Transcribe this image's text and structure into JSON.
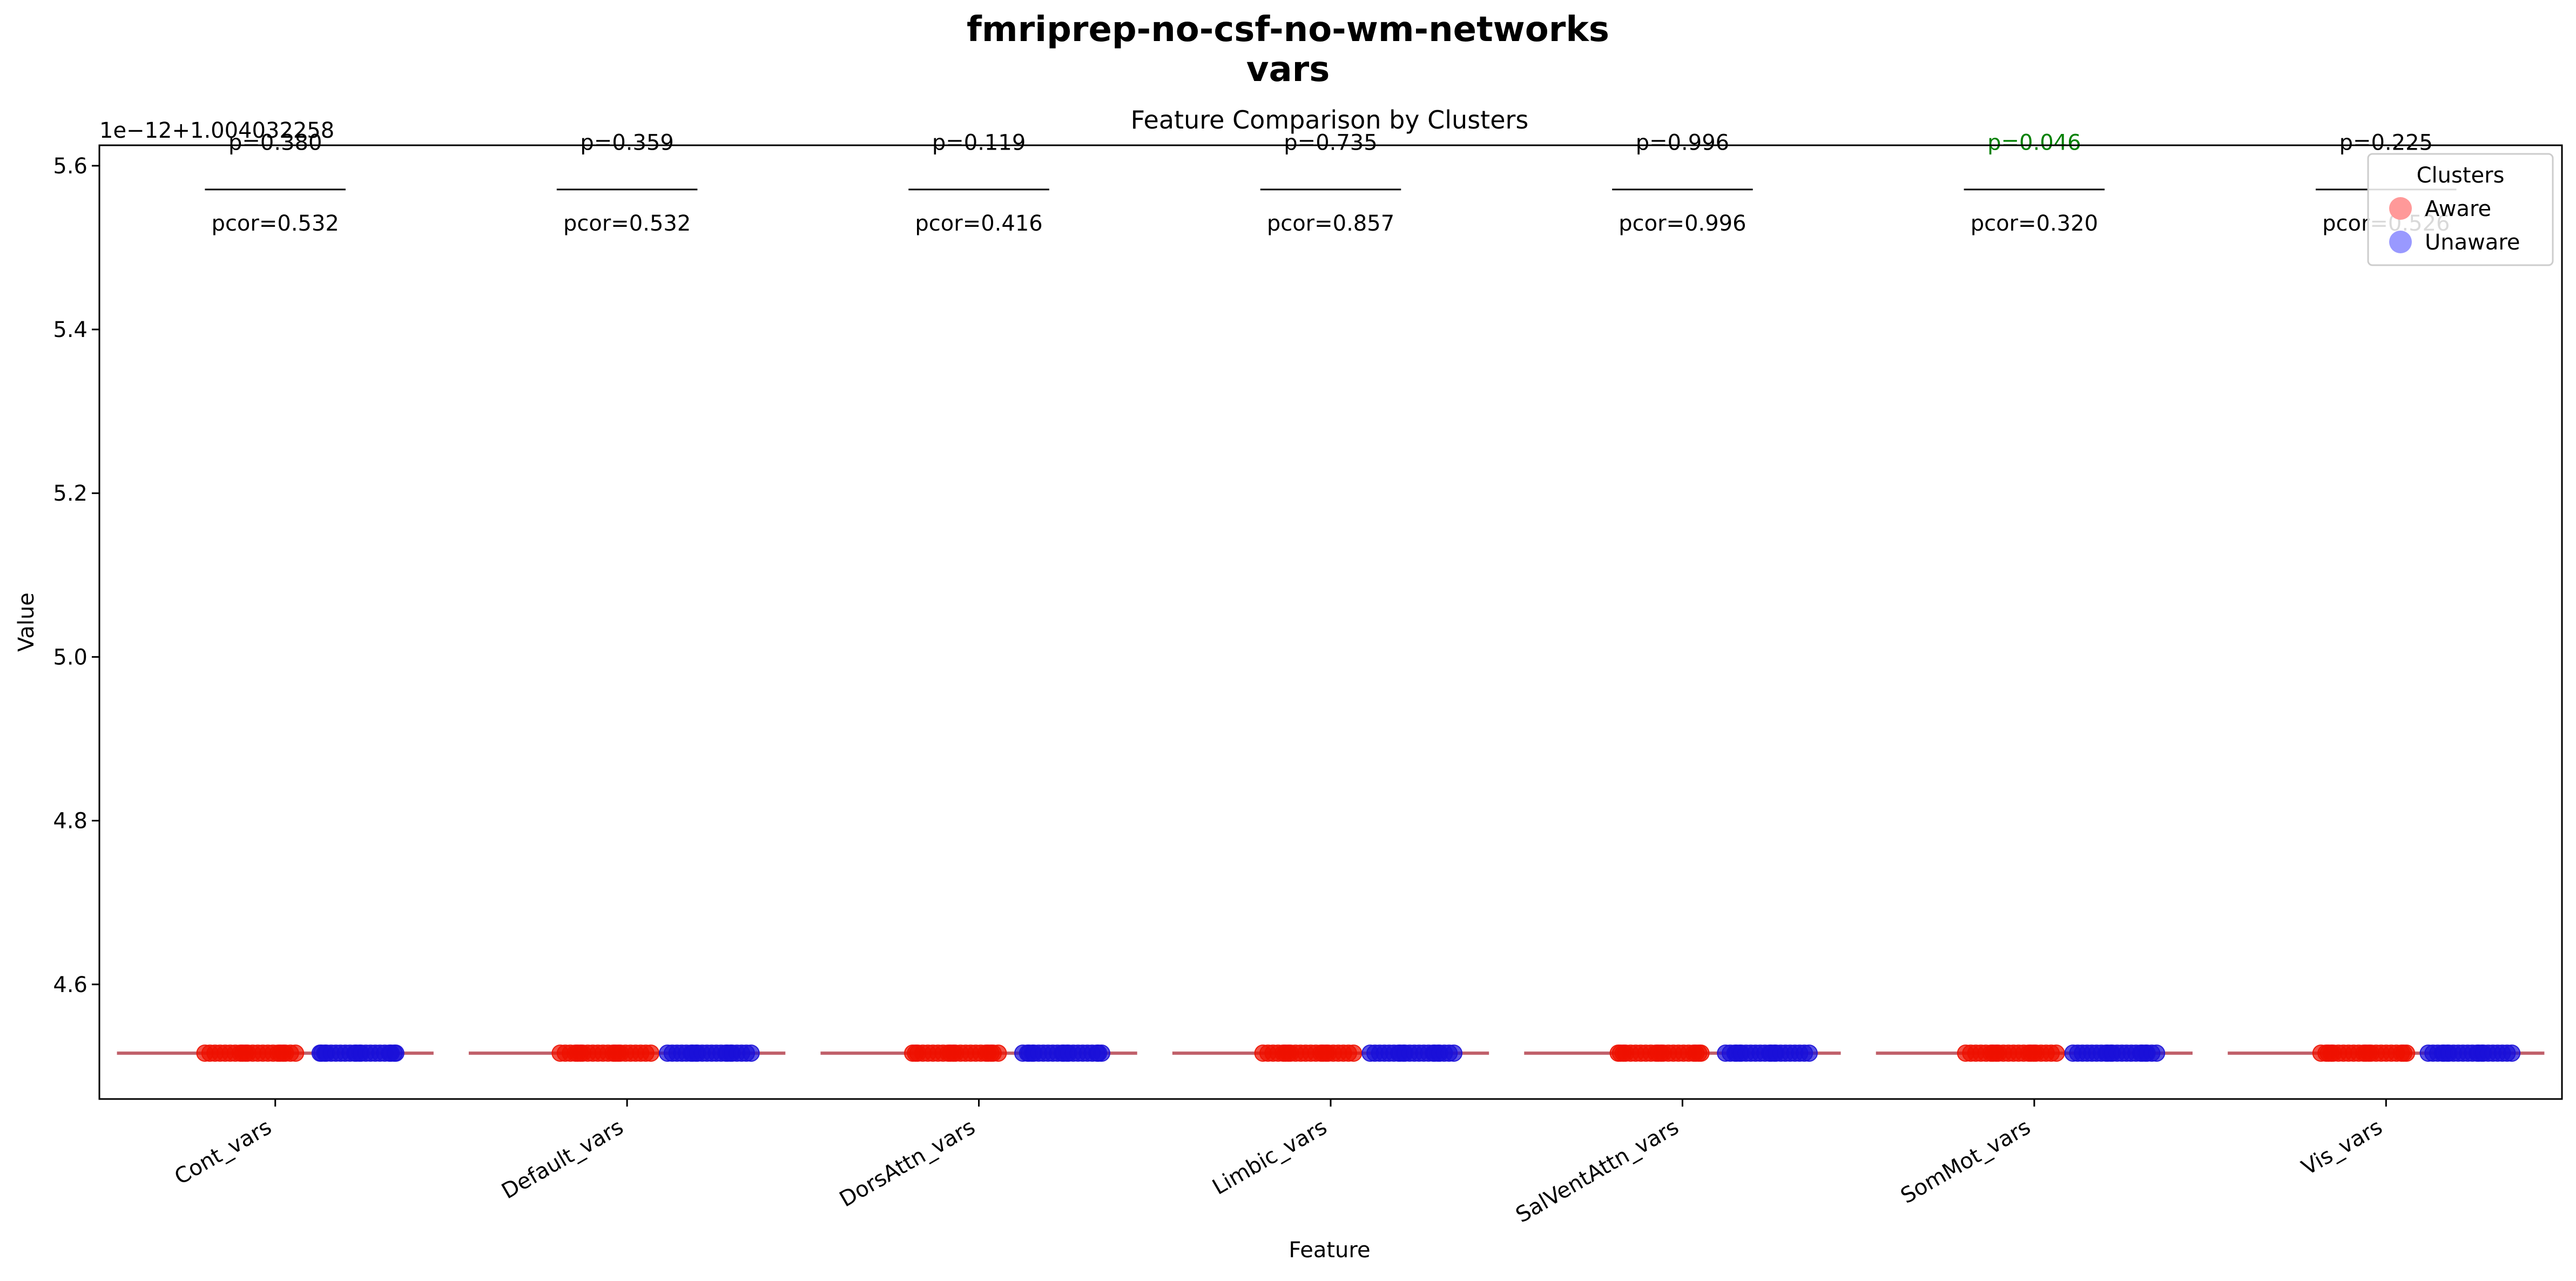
{
  "figure": {
    "suptitle_line1": "fmriprep-no-csf-no-wm-networks",
    "suptitle_line2": "vars"
  },
  "chart_data": {
    "type": "scatter",
    "title": "Feature Comparison by Clusters",
    "xlabel": "Feature",
    "ylabel": "Value",
    "offset_label": "1e−12+1.004032258",
    "categories": [
      "Cont_vars",
      "Default_vars",
      "DorsAttn_vars",
      "Limbic_vars",
      "SalVentAttn_vars",
      "SomMot_vars",
      "Vis_vars"
    ],
    "yticks": [
      "4.6",
      "4.8",
      "5.0",
      "5.2",
      "5.4",
      "5.6"
    ],
    "ytick_values": [
      4.6,
      4.8,
      5.0,
      5.2,
      5.4,
      5.6
    ],
    "ylim": [
      4.46,
      5.625
    ],
    "xlim": [
      -0.5,
      6.5
    ],
    "grid": false,
    "legend": {
      "title": "Clusters",
      "placement": "top-right",
      "entries": [
        {
          "label": "Aware",
          "color": "#ff9999"
        },
        {
          "label": "Unaware",
          "color": "#9999ff"
        }
      ]
    },
    "series": [
      {
        "name": "Aware",
        "color": "#ee1100",
        "cluster_value": 4.516,
        "spread": [
          -0.19,
          0.06
        ]
      },
      {
        "name": "Unaware",
        "color": "#1a10d8",
        "cluster_value": 4.516,
        "spread": [
          0.12,
          0.35
        ]
      }
    ],
    "mean_line_color": "#c0606a",
    "mean_line_value": 4.516,
    "annotations": [
      {
        "p": "p=0.380",
        "pcor": "pcor=0.532",
        "significant": false
      },
      {
        "p": "p=0.359",
        "pcor": "pcor=0.532",
        "significant": false
      },
      {
        "p": "p=0.119",
        "pcor": "pcor=0.416",
        "significant": false
      },
      {
        "p": "p=0.735",
        "pcor": "pcor=0.857",
        "significant": false
      },
      {
        "p": "p=0.996",
        "pcor": "pcor=0.996",
        "significant": false
      },
      {
        "p": "p=0.046",
        "pcor": "pcor=0.320",
        "significant": true
      },
      {
        "p": "p=0.225",
        "pcor": "pcor=0.526",
        "significant": false
      }
    ],
    "annotation_y": {
      "p": 5.63,
      "bar": 5.571,
      "pcor": 5.53
    },
    "significant_color": "#008000",
    "text_color": "#000000"
  }
}
